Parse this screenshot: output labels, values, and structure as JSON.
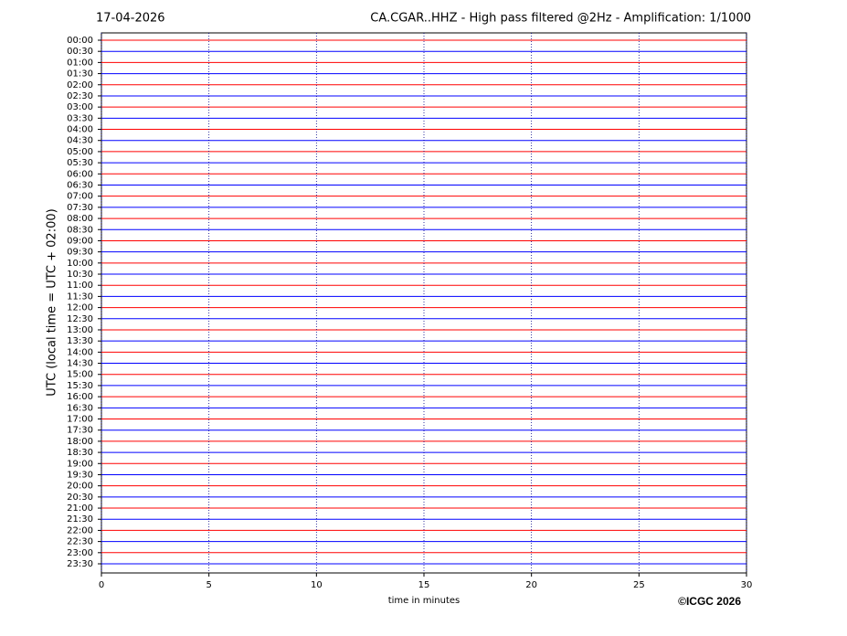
{
  "chart_data": {
    "type": "seismogram",
    "date": "17-04-2026",
    "title": "CA.CGAR..HHZ - High pass filtered @2Hz - Amplification: 1/1000",
    "y_label": "UTC (local time = UTC + 02:00)",
    "x_label": "time in minutes",
    "copyright": "©ICGC 2026",
    "categories": [
      "00:00",
      "00:30",
      "01:00",
      "01:30",
      "02:00",
      "02:30",
      "03:00",
      "03:30",
      "04:00",
      "04:30",
      "05:00",
      "05:30",
      "06:00",
      "06:30",
      "07:00",
      "07:30",
      "08:00",
      "08:30",
      "09:00",
      "09:30",
      "10:00",
      "10:30",
      "11:00",
      "11:30",
      "12:00",
      "12:30",
      "13:00",
      "13:30",
      "14:00",
      "14:30",
      "15:00",
      "15:30",
      "16:00",
      "16:30",
      "17:00",
      "17:30",
      "18:00",
      "18:30",
      "19:00",
      "19:30",
      "20:00",
      "20:30",
      "21:00",
      "21:30",
      "22:00",
      "22:30",
      "23:00",
      "23:30"
    ],
    "trace_colors": [
      "#ff0000",
      "#0000ff"
    ],
    "xlim": [
      0,
      30
    ],
    "xticks": [
      0,
      5,
      10,
      15,
      20,
      25,
      30
    ],
    "grid": true
  }
}
